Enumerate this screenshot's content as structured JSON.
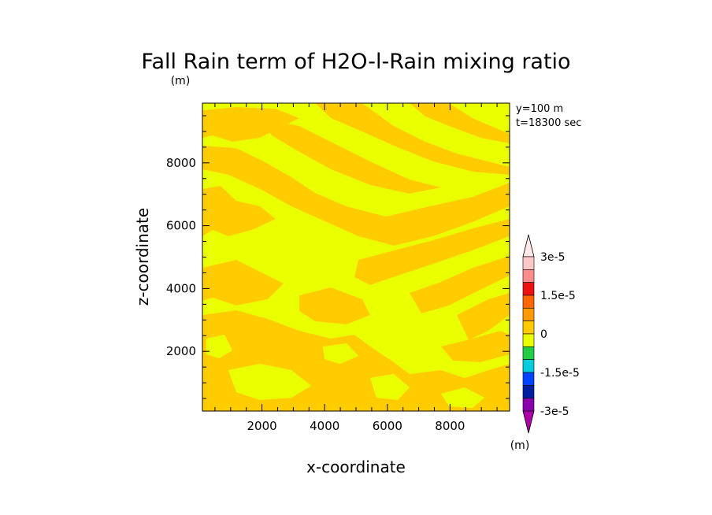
{
  "chart_data": {
    "type": "heatmap",
    "title": "Fall Rain term of H2O-l-Rain mixing ratio",
    "title_unit": "(m)",
    "xlabel": "x-coordinate",
    "ylabel": "z-coordinate",
    "xlim": [
      100,
      9900
    ],
    "ylim": [
      100,
      9900
    ],
    "x_ticks": [
      "2000",
      "4000",
      "6000",
      "8000"
    ],
    "y_ticks": [
      "2000",
      "4000",
      "6000",
      "8000"
    ],
    "x_tick_values": [
      2000,
      4000,
      6000,
      8000
    ],
    "y_tick_values": [
      2000,
      4000,
      6000,
      8000
    ],
    "annotations": [
      "y=100  m",
      "t=18300 sec"
    ],
    "field_colors": {
      "positive_small": "#ffcc00",
      "near_zero": "#eaff00"
    },
    "colorbar": {
      "unit": "(m)",
      "labels": [
        "3e-5",
        "1.5e-5",
        "0",
        "-1.5e-5",
        "-3e-5"
      ],
      "label_values": [
        3e-05,
        1.5e-05,
        0,
        -1.5e-05,
        -3e-05
      ],
      "colors_top_to_bottom": [
        "#ffc8c8",
        "#ff8c8c",
        "#ee1111",
        "#ff6600",
        "#ff9900",
        "#ffcc00",
        "#eaff00",
        "#22cc44",
        "#00ccdd",
        "#0044ff",
        "#001ea0",
        "#8800aa"
      ]
    }
  }
}
